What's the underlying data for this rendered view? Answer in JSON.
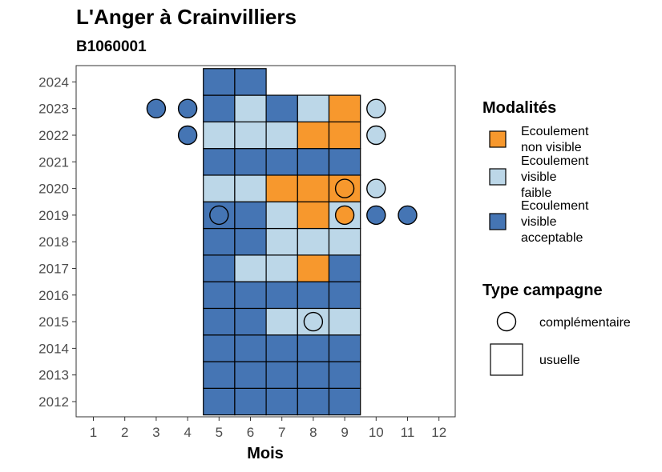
{
  "chart_data": {
    "type": "heatmap",
    "title": "L'Anger à Crainvilliers",
    "subtitle": "B1060001",
    "xlabel": "Mois",
    "ylabel": "",
    "x_ticks": [
      1,
      2,
      3,
      4,
      5,
      6,
      7,
      8,
      9,
      10,
      11,
      12
    ],
    "y_ticks": [
      2012,
      2013,
      2014,
      2015,
      2016,
      2017,
      2018,
      2019,
      2020,
      2021,
      2022,
      2023,
      2024
    ],
    "colors": {
      "non_visible": "#f7982d",
      "faible": "#bcd7e8",
      "acceptable": "#4575b4"
    },
    "legend": {
      "modalites_title": "Modalités",
      "modalites": [
        {
          "key": "non_visible",
          "lines": [
            "Ecoulement",
            "non visible"
          ]
        },
        {
          "key": "faible",
          "lines": [
            "Ecoulement",
            "visible",
            "faible"
          ]
        },
        {
          "key": "acceptable",
          "lines": [
            "Ecoulement",
            "visible",
            "acceptable"
          ]
        }
      ],
      "type_title": "Type campagne",
      "types": [
        {
          "shape": "circle",
          "label": "complémentaire"
        },
        {
          "shape": "square",
          "label": "usuelle"
        }
      ]
    },
    "usuelle": [
      {
        "year": 2012,
        "values": [
          [
            "5",
            "acceptable"
          ],
          [
            "6",
            "acceptable"
          ],
          [
            "7",
            "acceptable"
          ],
          [
            "8",
            "acceptable"
          ],
          [
            "9",
            "acceptable"
          ]
        ]
      },
      {
        "year": 2013,
        "values": [
          [
            "5",
            "acceptable"
          ],
          [
            "6",
            "acceptable"
          ],
          [
            "7",
            "acceptable"
          ],
          [
            "8",
            "acceptable"
          ],
          [
            "9",
            "acceptable"
          ]
        ]
      },
      {
        "year": 2014,
        "values": [
          [
            "5",
            "acceptable"
          ],
          [
            "6",
            "acceptable"
          ],
          [
            "7",
            "acceptable"
          ],
          [
            "8",
            "acceptable"
          ],
          [
            "9",
            "acceptable"
          ]
        ]
      },
      {
        "year": 2015,
        "values": [
          [
            "5",
            "acceptable"
          ],
          [
            "6",
            "acceptable"
          ],
          [
            "7",
            "faible"
          ],
          [
            "8",
            "faible"
          ],
          [
            "9",
            "faible"
          ]
        ]
      },
      {
        "year": 2016,
        "values": [
          [
            "5",
            "acceptable"
          ],
          [
            "6",
            "acceptable"
          ],
          [
            "7",
            "acceptable"
          ],
          [
            "8",
            "acceptable"
          ],
          [
            "9",
            "acceptable"
          ]
        ]
      },
      {
        "year": 2017,
        "values": [
          [
            "5",
            "acceptable"
          ],
          [
            "6",
            "faible"
          ],
          [
            "7",
            "faible"
          ],
          [
            "8",
            "non_visible"
          ],
          [
            "9",
            "acceptable"
          ]
        ]
      },
      {
        "year": 2018,
        "values": [
          [
            "5",
            "acceptable"
          ],
          [
            "6",
            "acceptable"
          ],
          [
            "7",
            "faible"
          ],
          [
            "8",
            "faible"
          ],
          [
            "9",
            "faible"
          ]
        ]
      },
      {
        "year": 2019,
        "values": [
          [
            "5",
            "acceptable"
          ],
          [
            "6",
            "acceptable"
          ],
          [
            "7",
            "faible"
          ],
          [
            "8",
            "non_visible"
          ],
          [
            "9",
            "faible"
          ]
        ]
      },
      {
        "year": 2020,
        "values": [
          [
            "5",
            "faible"
          ],
          [
            "6",
            "faible"
          ],
          [
            "7",
            "non_visible"
          ],
          [
            "8",
            "non_visible"
          ],
          [
            "9",
            "non_visible"
          ]
        ]
      },
      {
        "year": 2021,
        "values": [
          [
            "5",
            "acceptable"
          ],
          [
            "6",
            "acceptable"
          ],
          [
            "7",
            "acceptable"
          ],
          [
            "8",
            "acceptable"
          ],
          [
            "9",
            "acceptable"
          ]
        ]
      },
      {
        "year": 2022,
        "values": [
          [
            "5",
            "faible"
          ],
          [
            "6",
            "faible"
          ],
          [
            "7",
            "faible"
          ],
          [
            "8",
            "non_visible"
          ],
          [
            "9",
            "non_visible"
          ]
        ]
      },
      {
        "year": 2023,
        "values": [
          [
            "5",
            "acceptable"
          ],
          [
            "6",
            "faible"
          ],
          [
            "7",
            "acceptable"
          ],
          [
            "8",
            "faible"
          ],
          [
            "9",
            "non_visible"
          ]
        ]
      },
      {
        "year": 2024,
        "values": [
          [
            "5",
            "acceptable"
          ],
          [
            "6",
            "acceptable"
          ]
        ]
      }
    ],
    "complementaire": [
      {
        "year": 2023,
        "month": 3,
        "value": "acceptable"
      },
      {
        "year": 2023,
        "month": 4,
        "value": "acceptable"
      },
      {
        "year": 2023,
        "month": 10,
        "value": "faible"
      },
      {
        "year": 2022,
        "month": 4,
        "value": "acceptable"
      },
      {
        "year": 2022,
        "month": 10,
        "value": "faible"
      },
      {
        "year": 2020,
        "month": 9,
        "value": "non_visible"
      },
      {
        "year": 2020,
        "month": 10,
        "value": "faible"
      },
      {
        "year": 2019,
        "month": 5,
        "value": "acceptable"
      },
      {
        "year": 2019,
        "month": 9,
        "value": "non_visible"
      },
      {
        "year": 2019,
        "month": 10,
        "value": "acceptable"
      },
      {
        "year": 2019,
        "month": 11,
        "value": "acceptable"
      },
      {
        "year": 2015,
        "month": 8,
        "value": "faible"
      }
    ]
  }
}
